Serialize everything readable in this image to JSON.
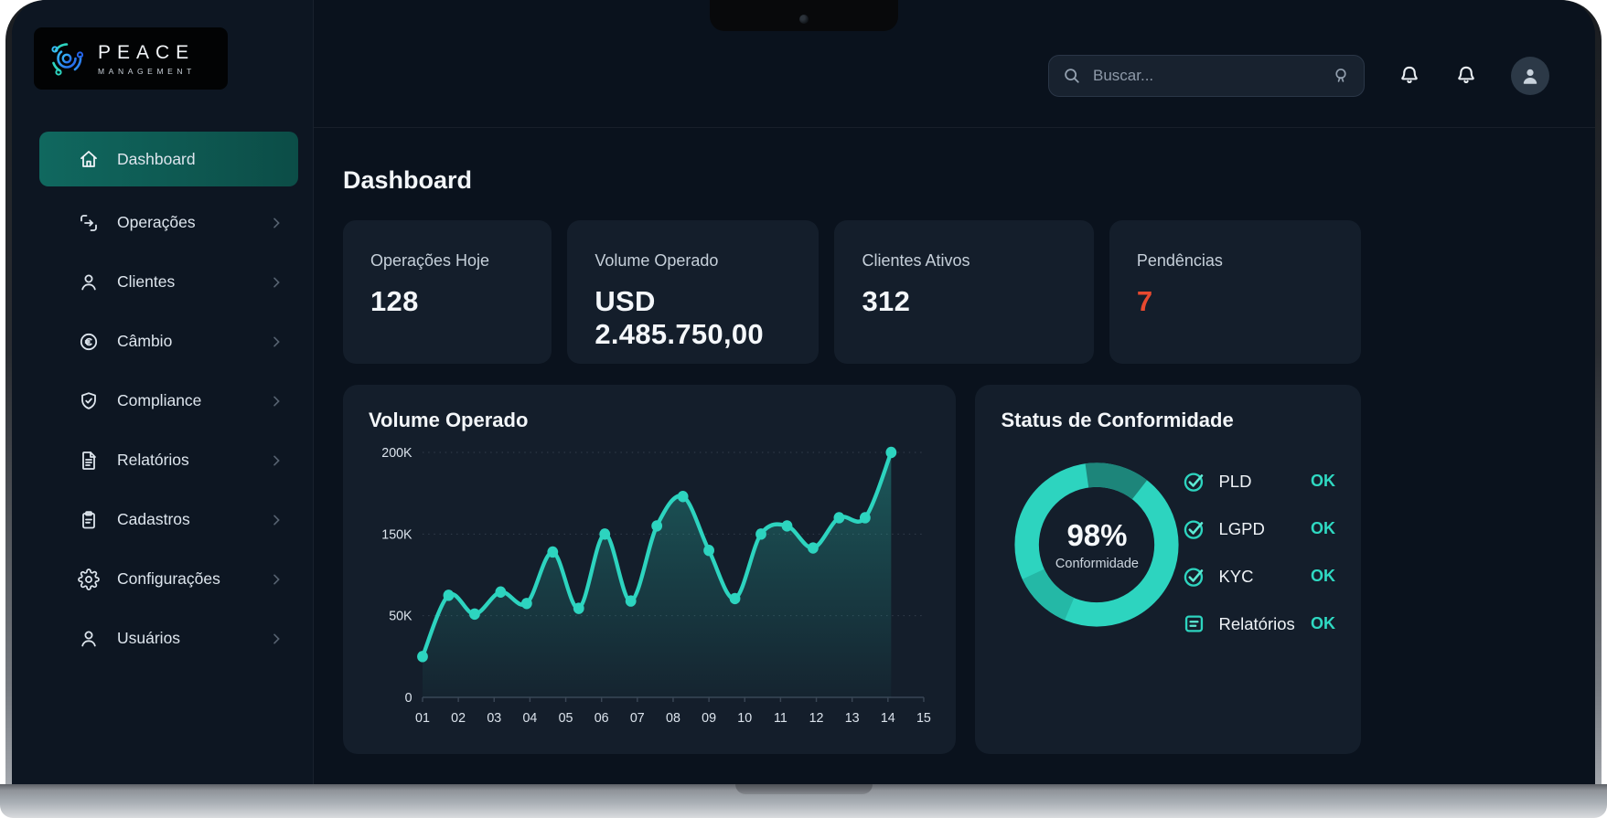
{
  "brand": {
    "title": "PEACE",
    "subtitle": "MANAGEMENT"
  },
  "header": {
    "search": {
      "placeholder": "Buscar..."
    },
    "icons": [
      "search-icon",
      "search-shortcut-icon",
      "notifications-bell-icon",
      "notifications-bell-icon",
      "user-avatar"
    ]
  },
  "sidebar": {
    "items": [
      {
        "label": "Dashboard",
        "icon": "home-icon",
        "active": true,
        "chevron": false
      },
      {
        "label": "Operações",
        "icon": "transfer-icon",
        "active": false,
        "chevron": true
      },
      {
        "label": "Clientes",
        "icon": "user-icon",
        "active": false,
        "chevron": true
      },
      {
        "label": "Câmbio",
        "icon": "currency-euro-icon",
        "active": false,
        "chevron": true
      },
      {
        "label": "Compliance",
        "icon": "shield-check-icon",
        "active": false,
        "chevron": true
      },
      {
        "label": "Relatórios",
        "icon": "file-text-icon",
        "active": false,
        "chevron": true
      },
      {
        "label": "Cadastros",
        "icon": "clipboard-icon",
        "active": false,
        "chevron": true
      },
      {
        "label": "Configurações",
        "icon": "gear-icon",
        "active": false,
        "chevron": true
      },
      {
        "label": "Usuários",
        "icon": "users-icon",
        "active": false,
        "chevron": true
      }
    ]
  },
  "page": {
    "title": "Dashboard"
  },
  "stats": [
    {
      "label": "Operações Hoje",
      "value": "128"
    },
    {
      "label": "Volume Operado",
      "value": "USD 2.485.750,00"
    },
    {
      "label": "Clientes Ativos",
      "value": "312"
    },
    {
      "label": "Pendências",
      "value": "7",
      "alert": true,
      "alert_color": "#e8492f"
    }
  ],
  "chart_data": [
    {
      "type": "area",
      "title": "Volume Operado",
      "x_labels": [
        "01",
        "02",
        "03",
        "04",
        "05",
        "06",
        "07",
        "08",
        "09",
        "10",
        "11",
        "12",
        "13",
        "14",
        "15"
      ],
      "y_tick_labels": [
        "200K",
        "150K",
        "50K",
        "0"
      ],
      "y_tick_values_k": [
        200,
        150,
        50,
        0
      ],
      "y_unit": "K",
      "series": [
        {
          "name": "Volume Operado",
          "values_k": [
            25,
            75,
            52,
            79,
            65,
            128,
            59,
            150,
            68,
            155,
            173,
            130,
            71,
            150,
            155,
            133,
            160,
            160,
            200
          ]
        }
      ],
      "x_span_fraction": 0.935,
      "grid": "dotted-horizontal",
      "line_color": "#2dd4bf",
      "fill_color": "rgba(45,212,191,0.30)"
    },
    {
      "type": "donut",
      "title": "Status de Conformidade",
      "center_value": "98%",
      "center_label": "Conformidade",
      "segments": [
        {
          "name": "main",
          "color": "#2dd4bf",
          "span_deg": 272
        },
        {
          "name": "dark",
          "color": "#1d857a",
          "span_deg": 46
        },
        {
          "name": "medium",
          "color": "#24b8a6",
          "span_deg": 42
        }
      ]
    }
  ],
  "compliance": {
    "title": "Status de Conformidade",
    "percent": "98%",
    "percent_label": "Conformidade",
    "items": [
      {
        "label": "PLD",
        "status": "OK"
      },
      {
        "label": "LGPD",
        "status": "OK"
      },
      {
        "label": "KYC",
        "status": "OK"
      },
      {
        "label": "Relatórios",
        "status": "OK"
      }
    ]
  },
  "colors": {
    "accent_teal": "#2dd4bf",
    "status_ok": "#2fd9c2",
    "alert_red": "#e8492f",
    "active_item_bg": "#0e5e55",
    "card_bg": "#141e2b",
    "screen_bg": "#0a121d",
    "sidebar_bg": "#0d1622"
  }
}
